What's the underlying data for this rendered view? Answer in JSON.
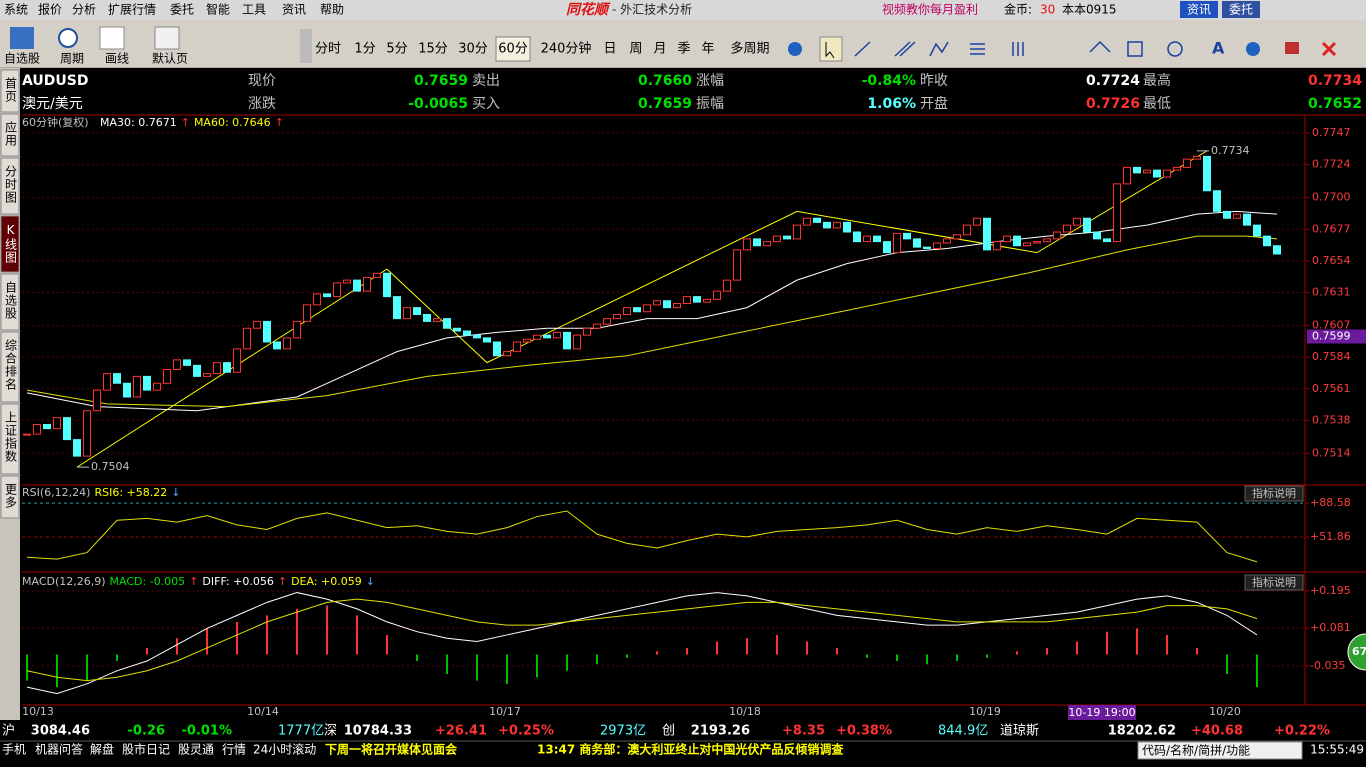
{
  "menu": [
    "系统",
    "报价",
    "分析",
    "扩展行情",
    "委托",
    "智能",
    "工具",
    "资讯",
    "帮助"
  ],
  "logo": "同花顺",
  "window_title": "- 外汇技术分析",
  "top_right": {
    "promo": "视频教你每月盈利",
    "coins_label": "金币:",
    "coins": "30",
    "user": "本本0915",
    "buttons": [
      "资讯",
      "委托"
    ]
  },
  "toolbar": {
    "left": [
      "自选股",
      "周期",
      "画线",
      "默认页"
    ],
    "periods": [
      "分时",
      "1分",
      "5分",
      "15分",
      "30分",
      "60分",
      "240分钟",
      "日",
      "周",
      "月",
      "季",
      "年",
      "多周期"
    ],
    "active_period": 5
  },
  "side_tabs": [
    "首页",
    "应用",
    "分时图",
    "K线图",
    "自选股",
    "综合排名",
    "上证指数",
    "更多"
  ],
  "active_tab": 3,
  "quote": {
    "symbol": "AUDUSD",
    "name": "澳元/美元",
    "rows": [
      [
        {
          "label": "现价",
          "value": "0.7659",
          "color": "#00e000"
        },
        {
          "label": "卖出",
          "value": "0.7660",
          "color": "#00e000"
        },
        {
          "label": "涨幅",
          "value": "-0.84%",
          "color": "#00e000"
        },
        {
          "label": "昨收",
          "value": "0.7724",
          "color": "#ffffff"
        },
        {
          "label": "最高",
          "value": "0.7734",
          "color": "#ff3232"
        }
      ],
      [
        {
          "label": "涨跌",
          "value": "-0.0065",
          "color": "#00e000"
        },
        {
          "label": "买入",
          "value": "0.7659",
          "color": "#00e000"
        },
        {
          "label": "振幅",
          "value": "1.06%",
          "color": "#54ffff"
        },
        {
          "label": "开盘",
          "value": "0.7726",
          "color": "#ff3232"
        },
        {
          "label": "最低",
          "value": "0.7652",
          "color": "#00e000"
        }
      ]
    ]
  },
  "chart": {
    "period_label": "60分钟(复权)",
    "legend": [
      {
        "text": "MA30: 0.7671",
        "color": "#ffffff"
      },
      {
        "text": "↑",
        "color": "#ff3232"
      },
      {
        "text": "MA60: 0.7646",
        "color": "#ffff00"
      },
      {
        "text": "↑",
        "color": "#ff3232"
      }
    ],
    "ylim": [
      0.7491,
      0.7747
    ],
    "yticks": [
      0.7747,
      0.7724,
      0.77,
      0.7677,
      0.7654,
      0.7631,
      0.7607,
      0.7584,
      0.7561,
      0.7538,
      0.7514
    ],
    "yticks_labels": [
      {
        "value": 0.77,
        "label": "0.7700"
      }
    ],
    "closes": [
      0.7528,
      0.7535,
      0.7532,
      0.754,
      0.7524,
      0.7512,
      0.7545,
      0.756,
      0.7572,
      0.7565,
      0.7555,
      0.757,
      0.756,
      0.7565,
      0.7575,
      0.7582,
      0.7578,
      0.757,
      0.7572,
      0.758,
      0.7573,
      0.759,
      0.7605,
      0.761,
      0.7595,
      0.759,
      0.7598,
      0.761,
      0.7622,
      0.763,
      0.7628,
      0.7638,
      0.764,
      0.7632,
      0.7642,
      0.7645,
      0.7628,
      0.7612,
      0.762,
      0.7615,
      0.761,
      0.7612,
      0.7605,
      0.7603,
      0.76,
      0.7598,
      0.7595,
      0.7585,
      0.7588,
      0.7595,
      0.7597,
      0.76,
      0.7598,
      0.7602,
      0.759,
      0.76,
      0.7605,
      0.7608,
      0.7612,
      0.7615,
      0.762,
      0.7617,
      0.7622,
      0.7625,
      0.762,
      0.7623,
      0.7628,
      0.7624,
      0.7626,
      0.7632,
      0.764,
      0.7662,
      0.767,
      0.7665,
      0.7668,
      0.7672,
      0.767,
      0.768,
      0.7685,
      0.7682,
      0.7678,
      0.7682,
      0.7675,
      0.7668,
      0.7672,
      0.7668,
      0.766,
      0.7674,
      0.767,
      0.7664,
      0.7663,
      0.7667,
      0.767,
      0.7673,
      0.768,
      0.7685,
      0.7662,
      0.7668,
      0.7672,
      0.7665,
      0.7667,
      0.7668,
      0.767,
      0.7675,
      0.768,
      0.7685,
      0.7675,
      0.767,
      0.7668,
      0.771,
      0.7722,
      0.7718,
      0.772,
      0.7715,
      0.772,
      0.7722,
      0.7728,
      0.773,
      0.7705,
      0.769,
      0.7685,
      0.7688,
      0.768,
      0.7672,
      0.7665,
      0.7659
    ],
    "ma30": {
      "x": [
        0,
        7,
        17,
        27,
        37,
        42,
        47,
        52,
        57,
        62,
        67,
        72,
        77,
        82,
        87,
        92,
        97,
        102,
        107,
        112,
        117,
        121,
        125
      ],
      "values": [
        0.7558,
        0.7548,
        0.7545,
        0.7555,
        0.7588,
        0.7598,
        0.7602,
        0.7605,
        0.7605,
        0.7612,
        0.7612,
        0.762,
        0.764,
        0.7652,
        0.766,
        0.7663,
        0.7668,
        0.7672,
        0.7675,
        0.768,
        0.7688,
        0.769,
        0.7688
      ]
    },
    "ma60": {
      "x": [
        0,
        8,
        20,
        30,
        40,
        50,
        60,
        70,
        80,
        90,
        100,
        110,
        117,
        122,
        125
      ],
      "values": [
        0.756,
        0.755,
        0.7548,
        0.7556,
        0.757,
        0.7578,
        0.7585,
        0.76,
        0.7615,
        0.763,
        0.7645,
        0.7662,
        0.7672,
        0.7672,
        0.767
      ]
    },
    "trend": {
      "x": [
        5,
        36,
        46,
        77,
        101,
        118
      ],
      "values": [
        0.7504,
        0.7648,
        0.758,
        0.769,
        0.766,
        0.7734
      ]
    },
    "high_label": 0.7734,
    "low_label": 0.7504,
    "cursor_price": 0.7599,
    "dates": [
      "10/13",
      "10/14",
      "10/17",
      "10/18",
      "10/19",
      "10/20"
    ],
    "cursor_time": "10-19 19:00"
  },
  "rsi": {
    "legend": "RSI(6,12,24)",
    "value_label": "RSI6: +58.22",
    "arrow": "↓",
    "help": "指标说明",
    "ylim": [
      14,
      106
    ],
    "yticks": [
      {
        "value": 88.58,
        "label": "+88.58"
      },
      {
        "value": 51.86,
        "label": "+51.86"
      }
    ],
    "x": [
      0,
      3,
      6,
      9,
      12,
      15,
      18,
      21,
      24,
      27,
      30,
      33,
      36,
      39,
      42,
      45,
      48,
      51,
      54,
      57,
      60,
      63,
      66,
      69,
      72,
      75,
      78,
      81,
      84,
      87,
      90,
      93,
      96,
      99,
      102,
      105,
      108,
      111,
      114,
      117,
      120,
      123
    ],
    "values": [
      30,
      28,
      35,
      70,
      72,
      68,
      75,
      65,
      60,
      72,
      78,
      70,
      62,
      64,
      58,
      55,
      62,
      74,
      80,
      55,
      45,
      40,
      48,
      55,
      52,
      58,
      60,
      62,
      65,
      70,
      60,
      55,
      62,
      58,
      64,
      60,
      55,
      72,
      70,
      68,
      35,
      25
    ]
  },
  "macd": {
    "legend": "MACD(12,26,9)",
    "items": [
      {
        "text": "MACD: -0.005",
        "color": "#00e000"
      },
      {
        "text": "↑",
        "color": "#ff3232"
      },
      {
        "text": "DIFF: +0.056",
        "color": "#ffffff"
      },
      {
        "text": "↑",
        "color": "#ff3232"
      },
      {
        "text": "DEA: +0.059",
        "color": "#ffff00"
      },
      {
        "text": "↓",
        "color": "#5aa0ff"
      }
    ],
    "help": "指标说明",
    "ylim": [
      -0.155,
      0.247
    ],
    "yticks": [
      {
        "value": 0.195,
        "label": "+0.195"
      },
      {
        "value": 0.081,
        "label": "+0.081"
      },
      -0.035
    ],
    "x": [
      0,
      3,
      6,
      9,
      12,
      15,
      18,
      21,
      24,
      27,
      30,
      33,
      36,
      39,
      42,
      45,
      48,
      51,
      54,
      57,
      60,
      63,
      66,
      69,
      72,
      75,
      78,
      81,
      84,
      87,
      90,
      93,
      96,
      99,
      102,
      105,
      108,
      111,
      114,
      117,
      120,
      123
    ],
    "hist": [
      -0.08,
      -0.1,
      -0.08,
      -0.02,
      0.02,
      0.05,
      0.08,
      0.1,
      0.12,
      0.14,
      0.15,
      0.12,
      0.06,
      -0.02,
      -0.06,
      -0.08,
      -0.09,
      -0.07,
      -0.05,
      -0.03,
      -0.01,
      0.01,
      0.02,
      0.04,
      0.05,
      0.06,
      0.04,
      0.02,
      -0.01,
      -0.02,
      -0.03,
      -0.02,
      -0.01,
      0.01,
      0.02,
      0.04,
      0.07,
      0.08,
      0.06,
      0.02,
      -0.06,
      -0.1
    ],
    "diff": [
      -0.1,
      -0.12,
      -0.09,
      -0.05,
      -0.02,
      0.03,
      0.08,
      0.12,
      0.16,
      0.19,
      0.17,
      0.14,
      0.1,
      0.07,
      0.05,
      0.04,
      0.06,
      0.08,
      0.1,
      0.12,
      0.14,
      0.16,
      0.18,
      0.19,
      0.18,
      0.16,
      0.14,
      0.12,
      0.11,
      0.1,
      0.09,
      0.09,
      0.1,
      0.11,
      0.12,
      0.13,
      0.15,
      0.17,
      0.18,
      0.16,
      0.12,
      0.06
    ],
    "dea": [
      -0.05,
      -0.07,
      -0.08,
      -0.07,
      -0.05,
      -0.02,
      0.02,
      0.06,
      0.1,
      0.13,
      0.16,
      0.17,
      0.16,
      0.14,
      0.12,
      0.1,
      0.09,
      0.09,
      0.1,
      0.11,
      0.12,
      0.13,
      0.14,
      0.15,
      0.16,
      0.16,
      0.15,
      0.14,
      0.13,
      0.12,
      0.11,
      0.1,
      0.1,
      0.1,
      0.1,
      0.11,
      0.12,
      0.13,
      0.15,
      0.15,
      0.14,
      0.11
    ]
  },
  "badge": "67",
  "ticker": [
    {
      "label": "沪",
      "value": "3084.46",
      "change": "-0.26",
      "pct": "-0.01%",
      "volume": "1777亿"
    },
    {
      "label": "深",
      "value": "10784.33",
      "change": "+26.41",
      "pct": "+0.25%",
      "volume": "2973亿"
    },
    {
      "label": "创",
      "value": "2193.26",
      "change": "+8.35",
      "pct": "+0.38%",
      "volume": "844.9亿"
    },
    {
      "label": "道琼斯",
      "value": "18202.62",
      "change": "+40.68",
      "pct": "+0.22%"
    }
  ],
  "status": {
    "links": [
      "手机",
      "机器问答",
      "解盘",
      "股市日记",
      "股灵通",
      "行情",
      "24小时滚动"
    ],
    "news": [
      "下周一将召开媒体见面会",
      "13:47 商务部：澳大利亚终止对中国光伏产品反倾销调查"
    ],
    "search": "代码/名称/简拼/功能",
    "time": "15:55:49"
  }
}
